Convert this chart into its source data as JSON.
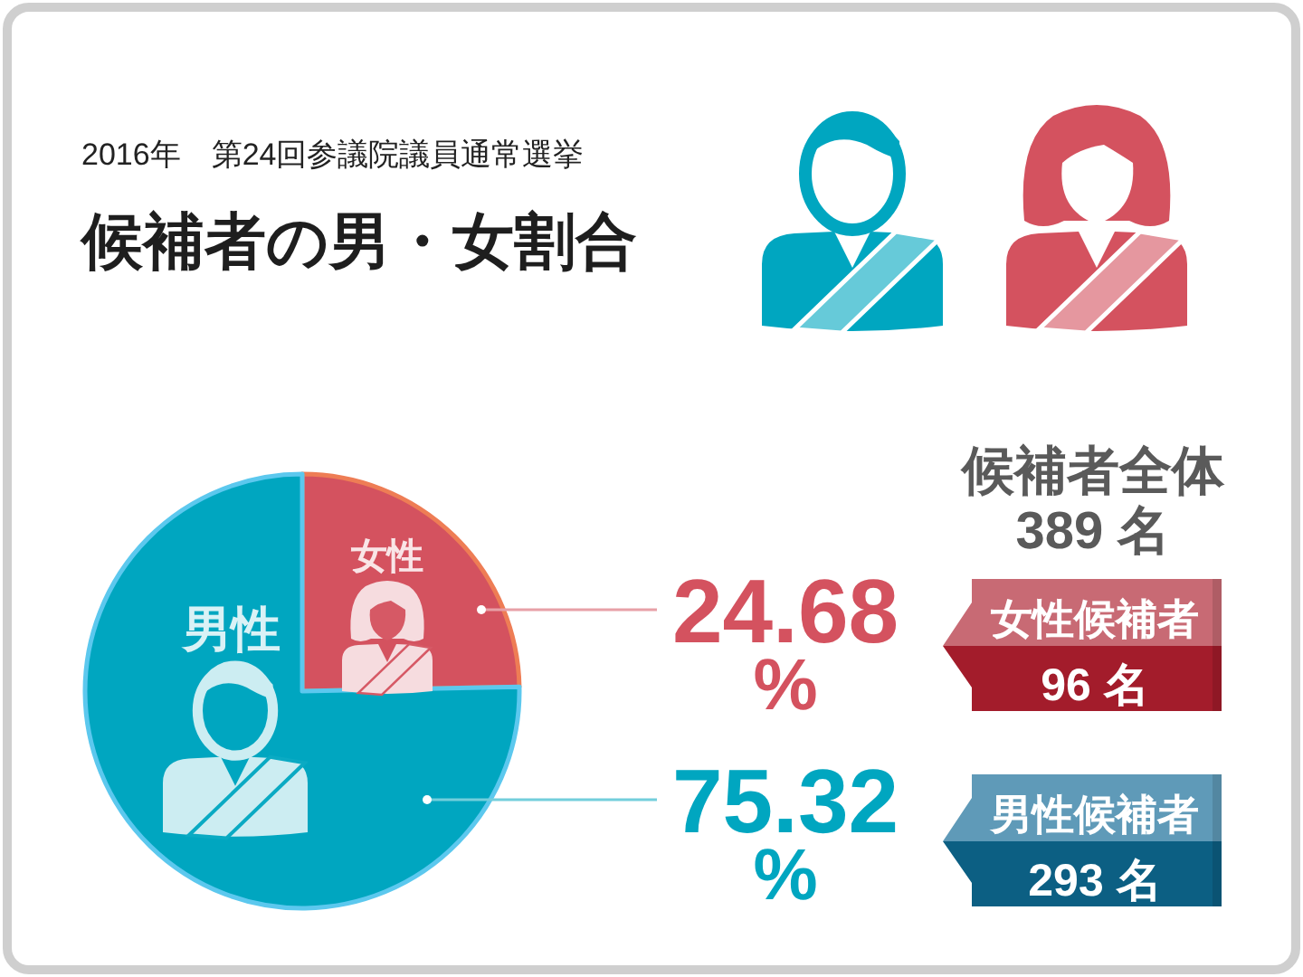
{
  "chart_data": {
    "type": "pie",
    "title": "候補者の男・女割合",
    "subtitle": "2016年　第24回参議院議員通常選挙",
    "categories": [
      "女性",
      "男性"
    ],
    "values": [
      24.68,
      75.32
    ],
    "colors": [
      "#d4525f",
      "#00a6c0"
    ],
    "value_labels": [
      "24.68 %",
      "75.32 %"
    ],
    "annotations": [
      "候補者全体",
      "389 名",
      "女性候補者",
      "96 名",
      "男性候補者",
      "293 名"
    ]
  }
}
